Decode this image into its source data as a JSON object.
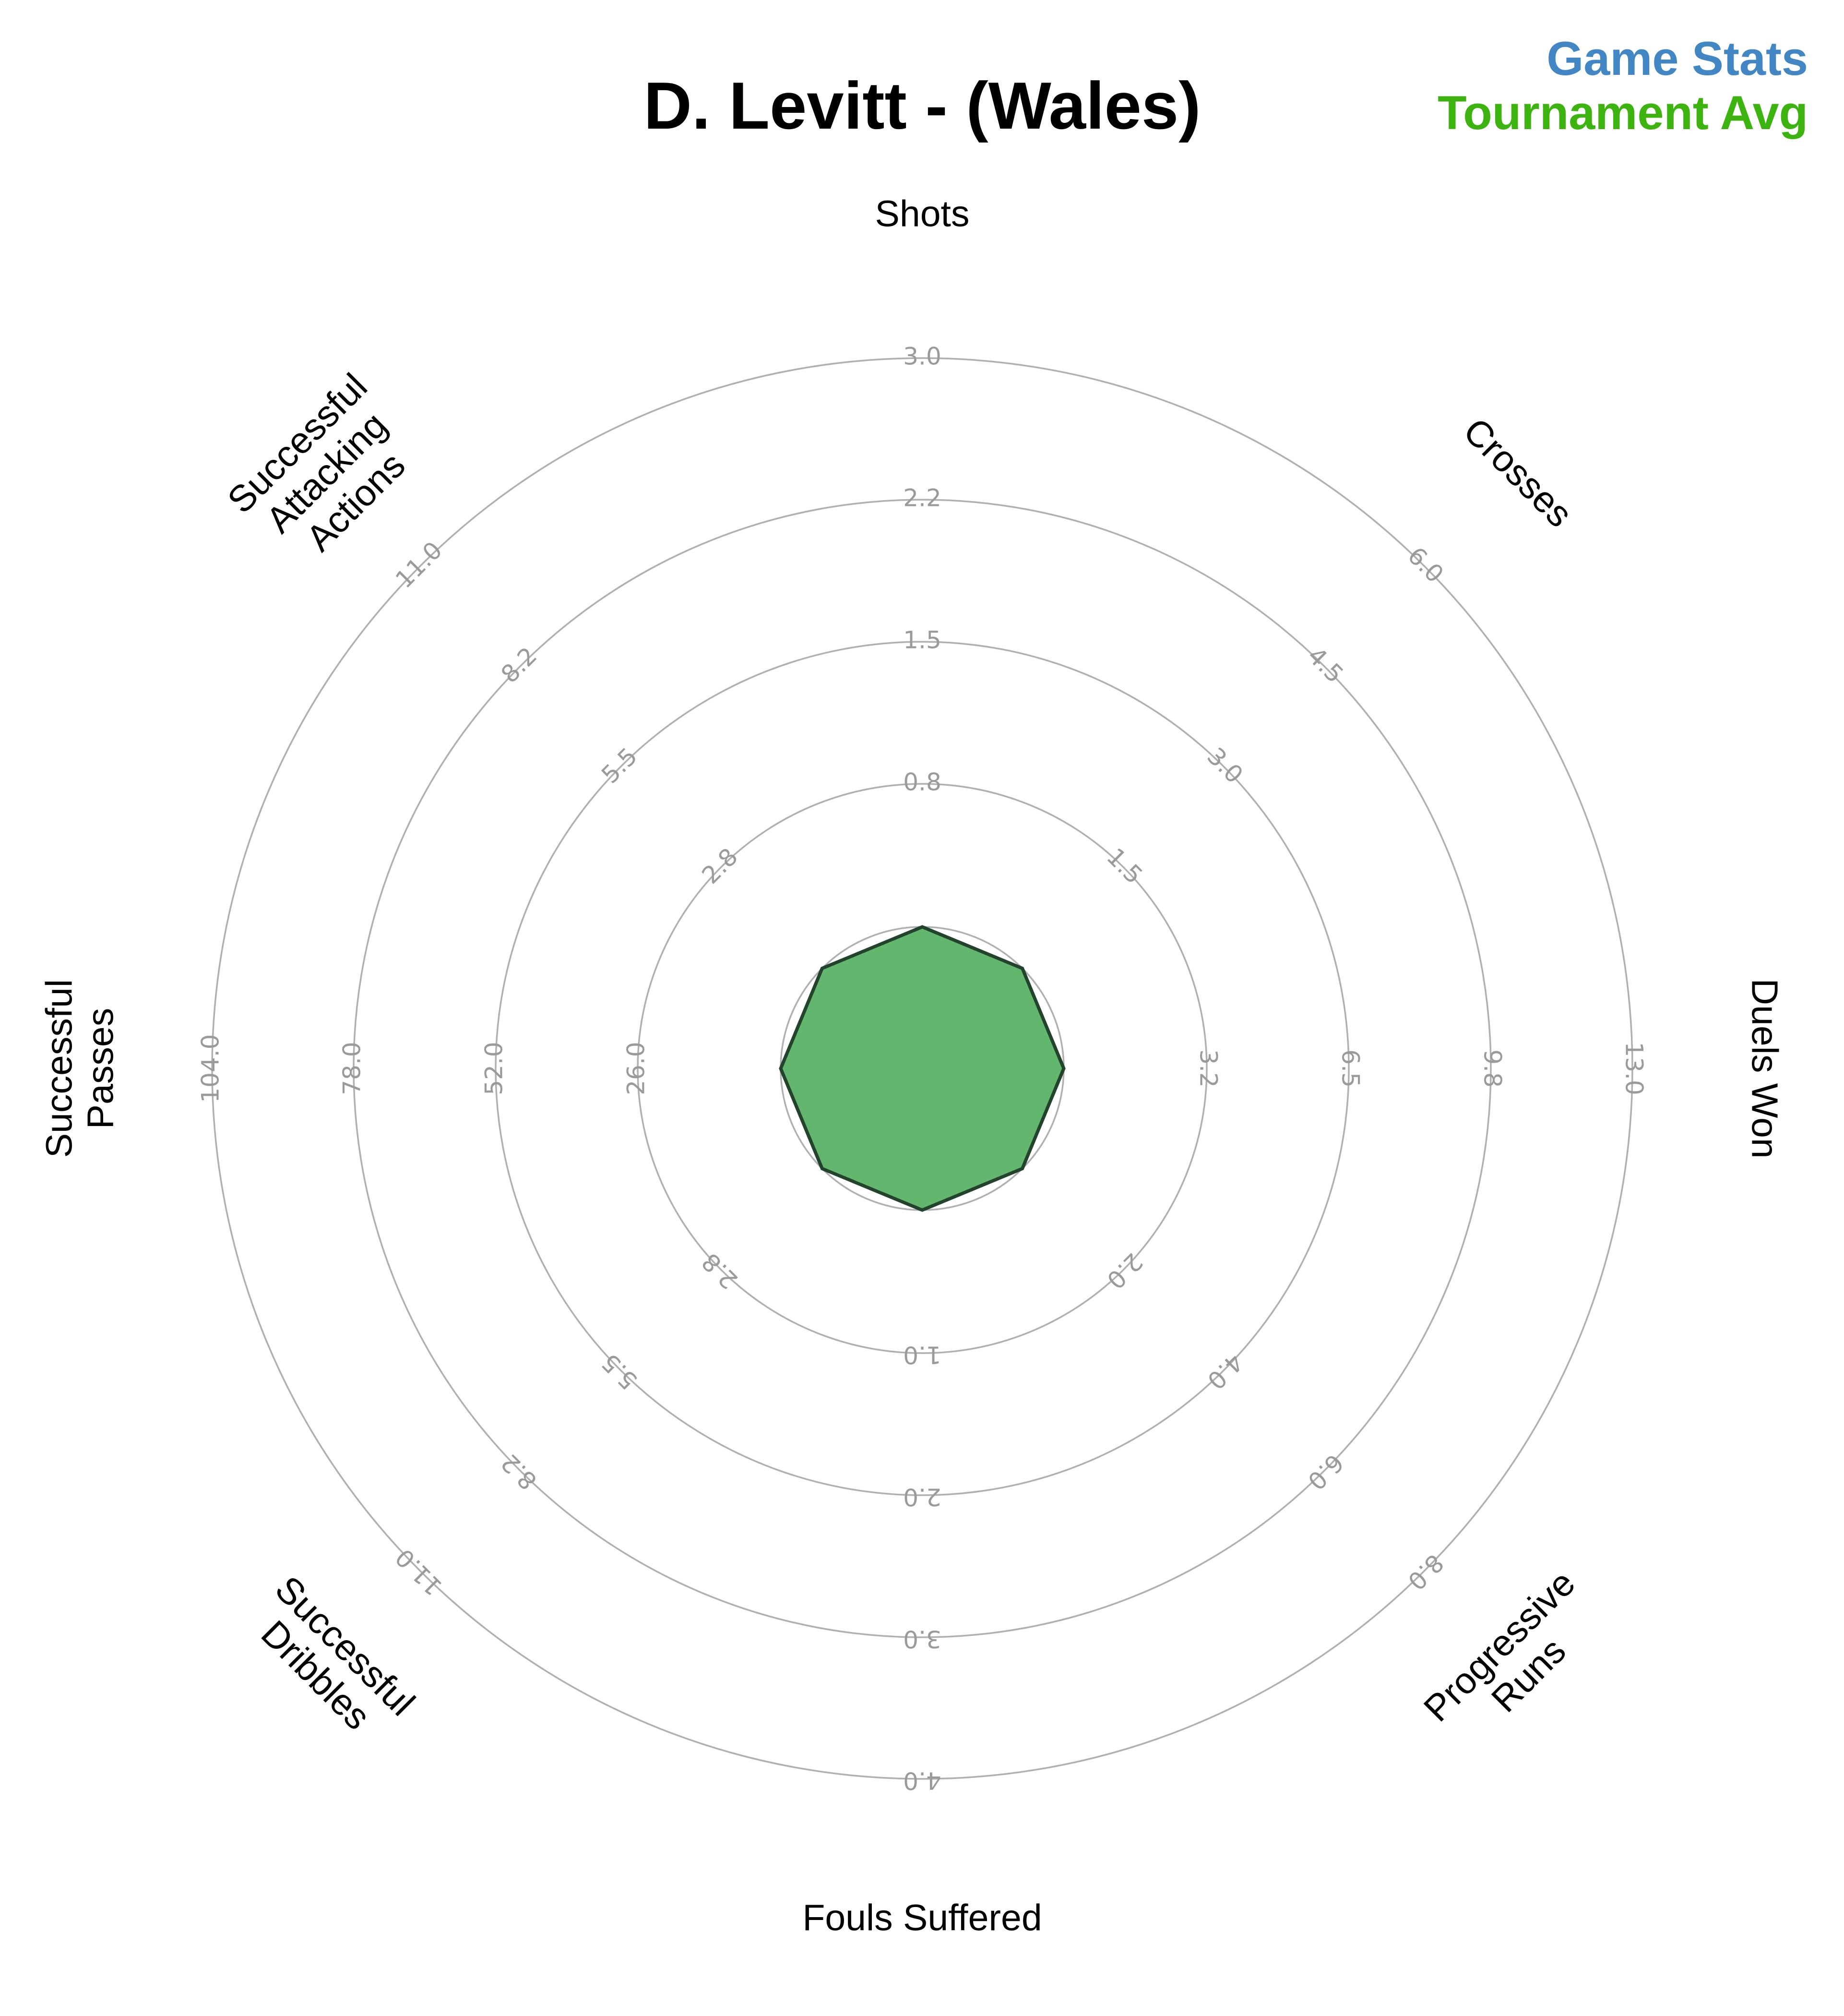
{
  "title": "D. Levitt - (Wales)",
  "legend": [
    {
      "label": "Game Stats",
      "color": "#4287c4"
    },
    {
      "label": "Tournament Avg",
      "color": "#3cb30f"
    }
  ],
  "chart_data": {
    "type": "radar",
    "axes": [
      {
        "label": "Shots",
        "ticks": [
          "0.8",
          "1.5",
          "2.2",
          "3.0"
        ],
        "max": 3.0
      },
      {
        "label": "Crosses",
        "ticks": [
          "1.5",
          "3.0",
          "4.5",
          "6.0"
        ],
        "max": 6.0
      },
      {
        "label": "Duels Won",
        "ticks": [
          "3.2",
          "6.5",
          "9.8",
          "13.0"
        ],
        "max": 13.0
      },
      {
        "label": "Progressive Runs",
        "ticks": [
          "2.0",
          "4.0",
          "6.0",
          "8.0"
        ],
        "max": 8.0
      },
      {
        "label": "Fouls Suffered",
        "ticks": [
          "1.0",
          "2.0",
          "3.0",
          "4.0"
        ],
        "max": 4.0
      },
      {
        "label": "Successful Dribbles",
        "ticks": [
          "2.8",
          "5.5",
          "8.2",
          "11.0"
        ],
        "max": 11.0
      },
      {
        "label": "Successful Passes",
        "ticks": [
          "26.0",
          "52.0",
          "78.0",
          "104.0"
        ],
        "max": 104.0
      },
      {
        "label": "Successful Attacking Actions",
        "ticks": [
          "2.8",
          "5.5",
          "8.2",
          "11.0"
        ],
        "max": 11.0
      }
    ],
    "series": [
      {
        "name": "Game Stats",
        "values": [
          0,
          0,
          0,
          0,
          0,
          0,
          0,
          0
        ],
        "fill": "#4f9fdb"
      },
      {
        "name": "Tournament Avg",
        "values": [
          0,
          0,
          0,
          0,
          0,
          0,
          0,
          0
        ],
        "fill": "#63b66e",
        "stroke": "#24432c"
      }
    ],
    "grid": true
  }
}
